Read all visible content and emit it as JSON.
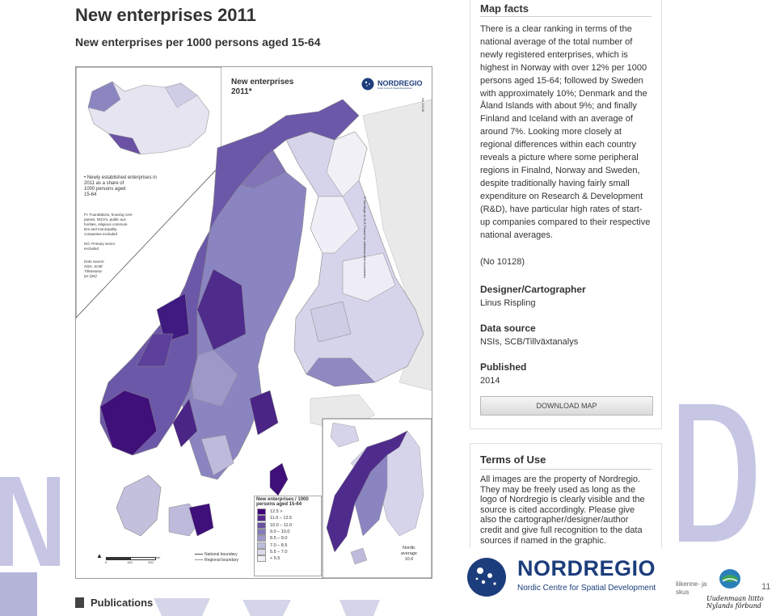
{
  "page": {
    "title": "New enterprises 2011",
    "subtitle": "New enterprises per 1000 persons aged 15-64"
  },
  "map": {
    "title_line1": "New enterprises",
    "title_line2": "2011*",
    "brand": "NORDREGIO",
    "brand_sub": "Nordic Centre for Spatial Development",
    "side_note": "© Nordregio & NLS Finland for administrative boundaries",
    "map_id": "No 10128",
    "note_lines": [
      "• Newly established enterprises in",
      "2011 as a share of",
      "1000 persons aged",
      "15-64"
    ],
    "fi_note": [
      "FI: Foundations, housing com-",
      "panies, NGO's, public aut-",
      "horities, religious communi-",
      "ties and municipality",
      "companies excluded"
    ],
    "no_note": [
      "NO: Primary sector",
      "excluded"
    ],
    "source_note": [
      "Data source:",
      "NSIs, SCB/",
      "Tillväxtana-",
      "lys (SE)"
    ],
    "legend": {
      "title_line1": "New enterprises / 1000",
      "title_line2": "persons aged 15-64",
      "classes": [
        {
          "label": "12.5 >",
          "color": "#3f007d"
        },
        {
          "label": "11.0 – 12.5",
          "color": "#54278f"
        },
        {
          "label": "10.0 – 11.0",
          "color": "#6a51a3"
        },
        {
          "label": "9.0 – 10.0",
          "color": "#807dba"
        },
        {
          "label": "8.5 – 9.0",
          "color": "#9e9ac8"
        },
        {
          "label": "7.0 – 8.5",
          "color": "#bcbddc"
        },
        {
          "label": "5.5 – 7.0",
          "color": "#dadaeb"
        },
        {
          "label": "< 5.5",
          "color": "#f2f0f7"
        }
      ]
    },
    "boundary_national": "National boundary",
    "boundary_regional": "Regional boundary",
    "scale_labels": [
      "0",
      "100",
      "200"
    ],
    "scale_unit": "km",
    "nordic_avg_lines": [
      "Nordic",
      "average",
      "10.6"
    ]
  },
  "facts": {
    "title": "Map facts",
    "body": "There is a clear ranking in terms of the national average of the total number of newly registered enterprises, which is highest in Norway with over 12% per 1000 persons aged 15-64; followed by Sweden with approximately 10%; Denmark and the Åland Islands with about 9%; and finally Finland and Iceland with an average of around 7%. Looking more closely at regional differences within each country reveals a picture where some peripheral regions in Finalnd, Norway and Sweden, despite traditionally having fairly small expenditure on Research & Development (R&D), have particular high rates of start-up companies compared to their respective national averages.",
    "map_number": "(No 10128)",
    "designer_label": "Designer/Cartographer",
    "designer": "Linus Rispling",
    "source_label": "Data source",
    "source": "NSIs, SCB/Tillväxtanalys",
    "published_label": "Published",
    "published": "2014",
    "download_label": "DOWNLOAD MAP"
  },
  "terms": {
    "title": "Terms of Use",
    "body": "All images are the property of Nordregio. They may be freely used as long as the logo of Nordregio is clearly visible and the source is cited accordingly. Please give also the cartographer/designer/author credit and give full recognition to the data sources if named in the graphic."
  },
  "footer": {
    "logo_text": "NORDREGIO",
    "logo_sub": "Nordic Centre for Spatial Development",
    "partner_text_line1": "liikenne- ja",
    "partner_text_line2": "skus",
    "partner_script_line1": "Uudenmaan liitto",
    "partner_script_line2": "Nylands förbund",
    "slide_number": "11",
    "publications_label": "Publications"
  },
  "colors": {
    "accent": "#1c3d7c",
    "watermark": "#c9c9e6"
  }
}
